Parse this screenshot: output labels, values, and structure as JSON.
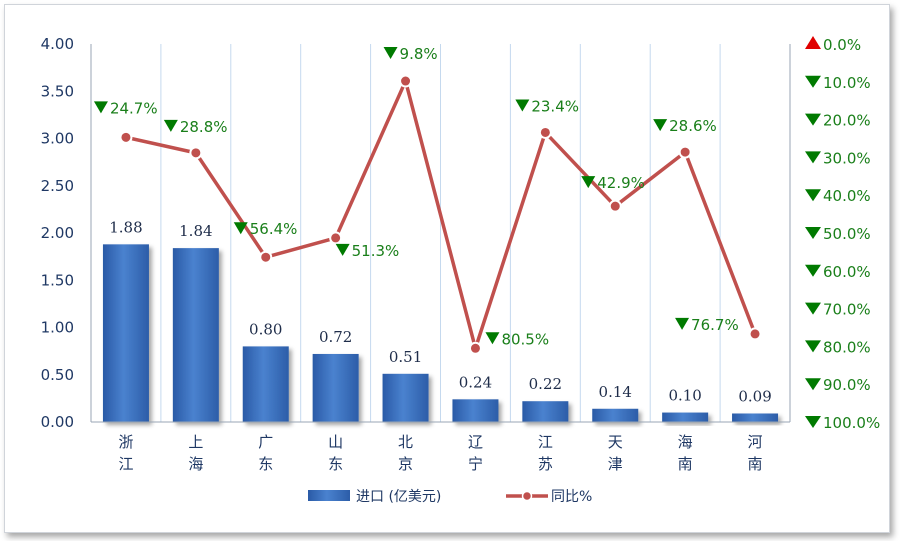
{
  "chart_data": {
    "type": "bar",
    "categories": [
      "浙江",
      "上海",
      "广东",
      "山东",
      "北京",
      "辽宁",
      "江苏",
      "天津",
      "海南",
      "河南"
    ],
    "series": [
      {
        "name": "进口 (亿美元)",
        "type": "bar",
        "axis": "left",
        "values": [
          1.88,
          1.84,
          0.8,
          0.72,
          0.51,
          0.24,
          0.22,
          0.14,
          0.1,
          0.09
        ],
        "labels": [
          "1.88",
          "1.84",
          "0.80",
          "0.72",
          "0.51",
          "0.24",
          "0.22",
          "0.14",
          "0.10",
          "0.09"
        ],
        "color": "#3a6fbf"
      },
      {
        "name": "同比%",
        "type": "line",
        "axis": "right",
        "values": [
          -24.7,
          -28.8,
          -56.4,
          -51.3,
          -9.8,
          -80.5,
          -23.4,
          -42.9,
          -28.6,
          -76.7
        ],
        "labels": [
          "24.7%",
          "28.8%",
          "56.4%",
          "51.3%",
          "9.8%",
          "80.5%",
          "23.4%",
          "42.9%",
          "28.6%",
          "76.7%"
        ],
        "color": "#c0504d"
      }
    ],
    "y_left": {
      "range": [
        0,
        4
      ],
      "ticks": [
        "4.00",
        "3.50",
        "3.00",
        "2.50",
        "2.00",
        "1.50",
        "1.00",
        "0.50",
        "0.00"
      ]
    },
    "y_right": {
      "range": [
        -100,
        0
      ],
      "ticks": [
        "0.0%",
        "10.0%",
        "20.0%",
        "30.0%",
        "40.0%",
        "50.0%",
        "60.0%",
        "70.0%",
        "80.0%",
        "90.0%",
        "100.0%"
      ],
      "zero_marker_color": "#e00000",
      "down_marker_color": "#007a00"
    },
    "grid": "vertical",
    "legend_position": "bottom"
  },
  "colors": {
    "bar": "#3a6fbf",
    "line": "#c0504d",
    "axis_text": "#1f3864",
    "percent_text": "#1a7f1a",
    "grid": "#c5d9ee"
  }
}
